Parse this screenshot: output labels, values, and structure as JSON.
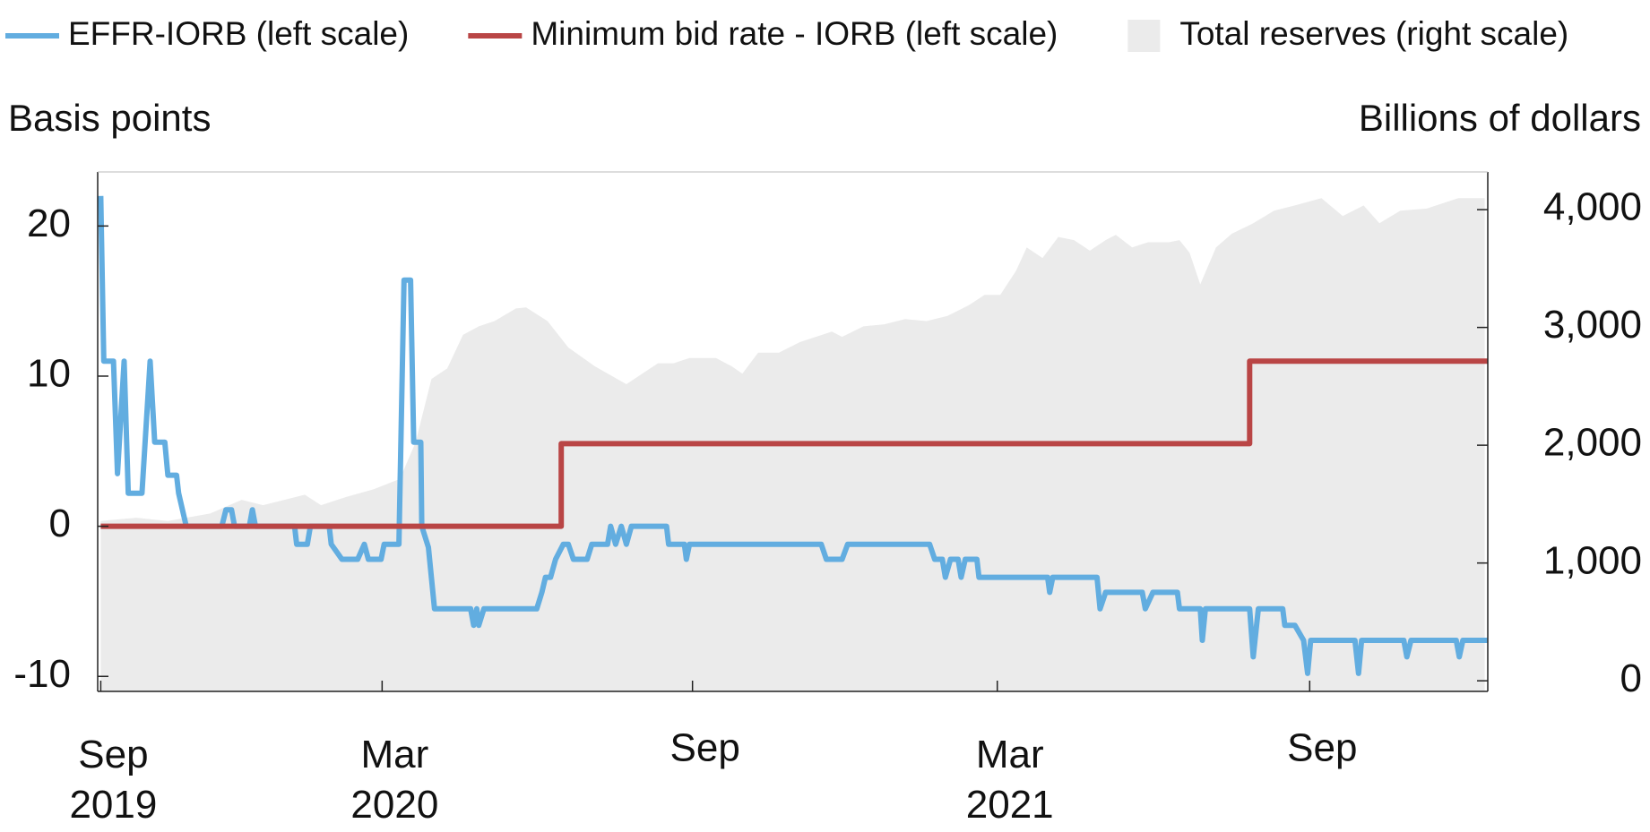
{
  "chart_data": {
    "type": "line",
    "y_label": "Basis points",
    "y2_label": "Billions of dollars",
    "xlim": [
      -0.06,
      27.26
    ],
    "xticks": [
      {
        "value": 0,
        "label": "Sep 2019"
      },
      {
        "value": 5.53,
        "label": "Mar 2020"
      },
      {
        "value": 11.63,
        "label": "Sep"
      },
      {
        "value": 17.62,
        "label": "Mar 2021"
      },
      {
        "value": 23.76,
        "label": "Sep"
      }
    ],
    "ylim": [
      -11,
      23.6
    ],
    "yticks": [
      -10,
      0,
      10,
      20
    ],
    "y2lim": [
      -90,
      4320
    ],
    "y2ticks": [
      0,
      {
        "value": 1000,
        "label": "1,000"
      },
      {
        "value": 2000,
        "label": "2,000"
      },
      {
        "value": 3000,
        "label": "3,000"
      },
      {
        "value": 4000,
        "label": "4,000"
      }
    ],
    "series": [
      {
        "name": "EFFR-IORB (left scale)",
        "type": "line",
        "color": "#62ade0",
        "label_color": "#1f6fa8",
        "x": [
          0,
          0.06,
          0.25,
          0.33,
          0.46,
          0.54,
          0.81,
          0.97,
          1.06,
          1.26,
          1.32,
          1.49,
          1.53,
          1.68,
          2.38,
          2.46,
          2.57,
          2.63,
          2.92,
          2.98,
          3.04,
          3.81,
          3.85,
          4.06,
          4.12,
          4.49,
          4.53,
          4.74,
          5.05,
          5.18,
          5.26,
          5.51,
          5.57,
          5.86,
          5.96,
          6.09,
          6.15,
          6.29,
          6.31,
          6.44,
          6.56,
          7.27,
          7.33,
          7.39,
          7.43,
          7.53,
          8.57,
          8.67,
          8.74,
          8.84,
          8.94,
          9.09,
          9.19,
          9.29,
          9.56,
          9.65,
          9.96,
          10.02,
          10.12,
          10.23,
          10.33,
          10.43,
          11.12,
          11.16,
          11.47,
          11.51,
          11.57,
          14.16,
          14.26,
          14.57,
          14.68,
          16.29,
          16.39,
          16.54,
          16.6,
          16.7,
          16.85,
          16.91,
          16.99,
          17.22,
          17.26,
          18.61,
          18.65,
          18.71,
          19.58,
          19.64,
          19.75,
          20.47,
          20.53,
          20.68,
          21.16,
          21.2,
          21.61,
          21.65,
          21.71,
          22.58,
          22.65,
          22.75,
          23.23,
          23.27,
          23.47,
          23.64,
          23.72,
          23.78,
          24.65,
          24.72,
          24.78,
          25.61,
          25.67,
          25.75,
          26.64,
          26.7,
          26.77,
          27.25
        ],
        "values": [
          22,
          11,
          11,
          3.5,
          11,
          2.2,
          2.2,
          11,
          5.6,
          5.6,
          3.4,
          3.4,
          2.2,
          0,
          0,
          1.1,
          1.1,
          0,
          0,
          1.1,
          0,
          0,
          -1.2,
          -1.2,
          0,
          0,
          -1.2,
          -2.2,
          -2.2,
          -1.2,
          -2.2,
          -2.2,
          -1.2,
          -1.2,
          16.4,
          16.4,
          5.6,
          5.6,
          0,
          -1.4,
          -5.5,
          -5.5,
          -6.6,
          -5.5,
          -6.6,
          -5.5,
          -5.5,
          -4.4,
          -3.4,
          -3.4,
          -2.2,
          -1.2,
          -1.2,
          -2.2,
          -2.2,
          -1.2,
          -1.2,
          0,
          -1.2,
          0,
          -1.2,
          0,
          0,
          -1.2,
          -1.2,
          -2.2,
          -1.2,
          -1.2,
          -2.2,
          -2.2,
          -1.2,
          -1.2,
          -2.2,
          -2.2,
          -3.4,
          -2.2,
          -2.2,
          -3.4,
          -2.2,
          -2.2,
          -3.4,
          -3.4,
          -4.4,
          -3.4,
          -3.4,
          -5.5,
          -4.4,
          -4.4,
          -5.5,
          -4.4,
          -4.4,
          -5.5,
          -5.5,
          -7.6,
          -5.5,
          -5.5,
          -8.7,
          -5.5,
          -5.5,
          -6.6,
          -6.6,
          -7.6,
          -9.8,
          -7.6,
          -7.6,
          -9.8,
          -7.6,
          -7.6,
          -8.7,
          -7.6,
          -7.6,
          -8.7,
          -7.6,
          -7.6
        ]
      },
      {
        "name": "Minimum bid rate - IORB (left scale)",
        "type": "line",
        "color": "#b94545",
        "label_color": "#b94545",
        "x": [
          0,
          9.05,
          9.05,
          22.58,
          22.58,
          27.26
        ],
        "values": [
          0,
          0,
          5.5,
          5.5,
          11,
          11
        ]
      },
      {
        "name": "Total reserves (right scale)",
        "type": "area",
        "axis": "y2",
        "color": "#ebebeb",
        "label_color": "#a9a9a9",
        "x": [
          0,
          0.7,
          1.32,
          2.15,
          2.77,
          3.19,
          4.01,
          4.33,
          4.84,
          5.36,
          5.88,
          6.19,
          6.5,
          6.81,
          7.12,
          7.43,
          7.74,
          8.16,
          8.36,
          8.78,
          9.19,
          9.71,
          10.33,
          10.95,
          11.26,
          11.57,
          12.09,
          12.4,
          12.61,
          12.92,
          13.33,
          13.74,
          14.37,
          14.57,
          14.99,
          15.4,
          15.81,
          16.23,
          16.64,
          17.06,
          17.37,
          17.68,
          17.99,
          18.2,
          18.51,
          18.82,
          19.13,
          19.44,
          19.75,
          19.95,
          20.27,
          20.58,
          20.99,
          21.2,
          21.4,
          21.61,
          21.92,
          22.23,
          22.65,
          23.06,
          23.47,
          23.99,
          24.41,
          24.82,
          25.13,
          25.54,
          26.06,
          26.68,
          27.2
        ],
        "values": [
          1357,
          1384,
          1357,
          1420,
          1536,
          1491,
          1580,
          1491,
          1563,
          1625,
          1714,
          2027,
          2563,
          2652,
          2937,
          3009,
          3054,
          3161,
          3170,
          3054,
          2830,
          2670,
          2518,
          2696,
          2696,
          2741,
          2741,
          2670,
          2607,
          2786,
          2786,
          2875,
          2964,
          2920,
          3009,
          3027,
          3071,
          3054,
          3098,
          3188,
          3277,
          3277,
          3482,
          3679,
          3589,
          3768,
          3741,
          3652,
          3741,
          3786,
          3679,
          3723,
          3723,
          3741,
          3634,
          3366,
          3679,
          3795,
          3884,
          3991,
          4036,
          4098,
          3946,
          4036,
          3884,
          3991,
          4009,
          4098,
          4098
        ]
      }
    ]
  }
}
